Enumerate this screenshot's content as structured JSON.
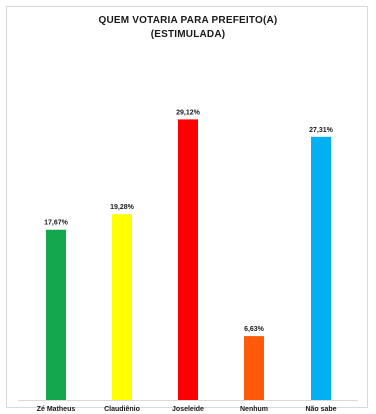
{
  "chart_data": {
    "type": "bar",
    "title": "QUEM VOTARIA PARA PREFEITO(A)",
    "subtitle": "(ESTIMULADA)",
    "xlabel": "",
    "ylabel": "",
    "ylim": [
      0,
      33
    ],
    "grid": false,
    "legend": "none",
    "categories": [
      "Zé Matheus",
      "Claudiênio",
      "Joseleide",
      "Nenhum",
      "Não sabe"
    ],
    "values": [
      17.67,
      19.28,
      29.12,
      6.63,
      27.31
    ],
    "data_labels": [
      "17,67%",
      "19,28%",
      "29,12%",
      "6,63%",
      "27,31%"
    ],
    "colors": [
      "#11a84e",
      "#ffff00",
      "#ff0000",
      "#ff5a0a",
      "#00b0f0"
    ]
  }
}
